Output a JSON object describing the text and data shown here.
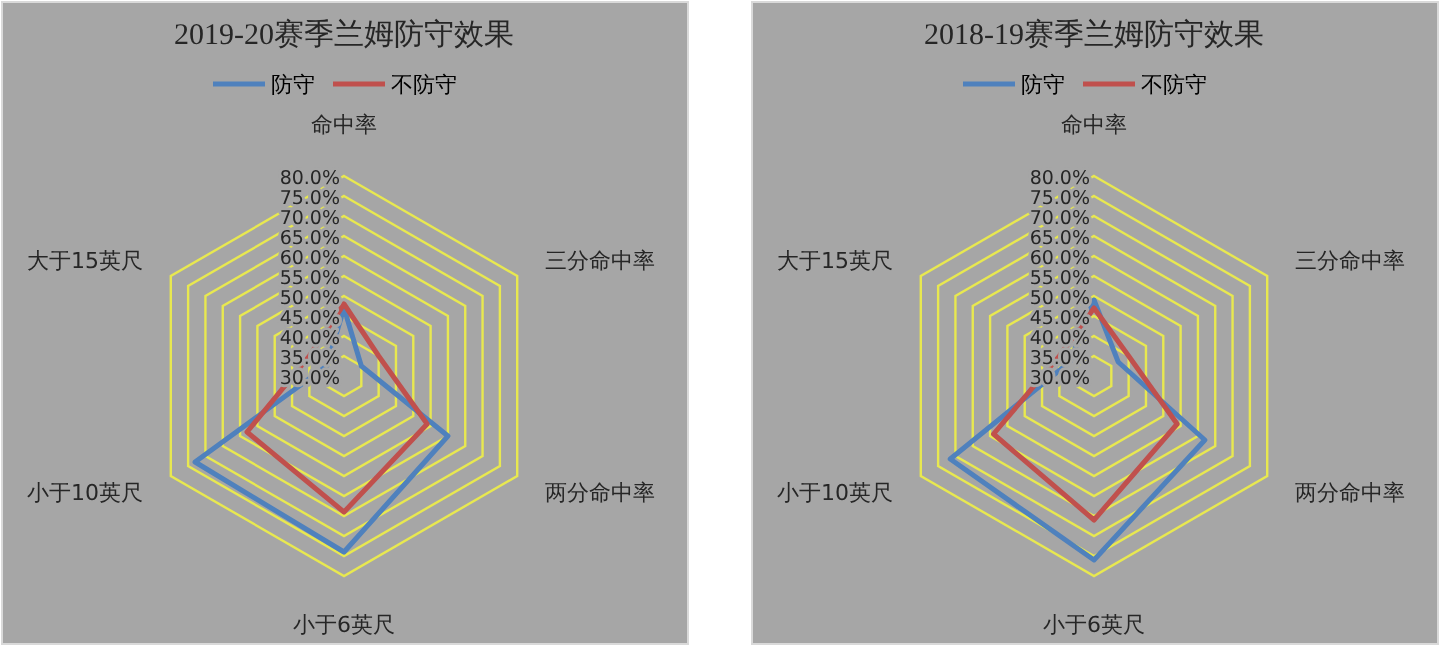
{
  "chart_data": [
    {
      "type": "radar",
      "title": "2019-20赛季兰姆防守效果",
      "categories": [
        "命中率",
        "三分命中率",
        "两分命中率",
        "小于6英尺",
        "小于10英尺",
        "大于15英尺"
      ],
      "series": [
        {
          "name": "防守",
          "color": "#4f81bd",
          "values": [
            47,
            35,
            60,
            74,
            73,
            35
          ]
        },
        {
          "name": "不防守",
          "color": "#c0504d",
          "values": [
            48,
            40,
            54,
            64,
            58,
            40
          ]
        }
      ],
      "ylim": [
        30,
        80
      ],
      "yticks": [
        {
          "value": 30,
          "label": "30.0%"
        },
        {
          "value": 35,
          "label": "35.0%"
        },
        {
          "value": 40,
          "label": "40.0%"
        },
        {
          "value": 45,
          "label": "45.0%"
        },
        {
          "value": 50,
          "label": "50.0%"
        },
        {
          "value": 55,
          "label": "55.0%"
        },
        {
          "value": 60,
          "label": "60.0%"
        },
        {
          "value": 65,
          "label": "65.0%"
        },
        {
          "value": 70,
          "label": "70.0%"
        },
        {
          "value": 75,
          "label": "75.0%"
        },
        {
          "value": 80,
          "label": "80.0%"
        }
      ],
      "grid": true,
      "legend": "top"
    },
    {
      "type": "radar",
      "title": "2018-19赛季兰姆防守效果",
      "categories": [
        "命中率",
        "三分命中率",
        "两分命中率",
        "小于6英尺",
        "小于10英尺",
        "大于15英尺"
      ],
      "series": [
        {
          "name": "防守",
          "color": "#4f81bd",
          "values": [
            49,
            37,
            62,
            76,
            71.5,
            37
          ]
        },
        {
          "name": "不防守",
          "color": "#c0504d",
          "values": [
            47,
            40,
            54,
            66,
            59,
            40
          ]
        }
      ],
      "ylim": [
        30,
        80
      ],
      "yticks": [
        {
          "value": 30,
          "label": "30.0%"
        },
        {
          "value": 35,
          "label": "35.0%"
        },
        {
          "value": 40,
          "label": "40.0%"
        },
        {
          "value": 45,
          "label": "45.0%"
        },
        {
          "value": 50,
          "label": "50.0%"
        },
        {
          "value": 55,
          "label": "55.0%"
        },
        {
          "value": 60,
          "label": "60.0%"
        },
        {
          "value": 65,
          "label": "65.0%"
        },
        {
          "value": 70,
          "label": "70.0%"
        },
        {
          "value": 75,
          "label": "75.0%"
        },
        {
          "value": 80,
          "label": "80.0%"
        }
      ],
      "grid": true,
      "legend": "top"
    }
  ]
}
